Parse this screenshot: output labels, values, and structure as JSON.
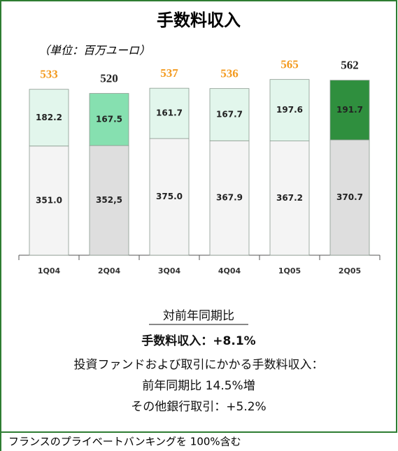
{
  "chart_data": {
    "type": "stacked_bar",
    "title": "手数料収入",
    "subtitle": "（単位：百万ユーロ）",
    "categories": [
      "1Q04",
      "2Q04",
      "3Q04",
      "4Q04",
      "1Q05",
      "2Q05"
    ],
    "series": [
      {
        "values": [
          351.0,
          352.5,
          375.0,
          367.9,
          367.2,
          370.7
        ],
        "value_labels": [
          "351.0",
          "352,5",
          "375.0",
          "367.9",
          "367.2",
          "370.7"
        ],
        "colors": [
          "#f4f4f4",
          "#dedede",
          "#f4f4f4",
          "#f4f4f4",
          "#f4f4f4",
          "#dedede"
        ]
      },
      {
        "values": [
          182.2,
          167.5,
          161.7,
          167.7,
          197.6,
          191.7
        ],
        "value_labels": [
          "182.2",
          "167.5",
          "161.7",
          "167.7",
          "197.6",
          "191.7"
        ],
        "colors": [
          "#e2f6ec",
          "#86e0b0",
          "#e2f6ec",
          "#e2f6ec",
          "#e2f6ec",
          "#2f8f3e"
        ]
      }
    ],
    "totals": [
      533,
      520,
      537,
      536,
      565,
      562
    ],
    "total_colors": [
      "#f39a1e",
      "#222222",
      "#f39a1e",
      "#f39a1e",
      "#f39a1e",
      "#222222"
    ],
    "ylim": [
      0,
      600
    ],
    "notes": {
      "heading": "対前年同期比",
      "main": "手数料収入：+8.1%",
      "line1": "投資ファンドおよび取引にかかる手数料収入：",
      "line2": "前年同期比 14.5%増",
      "line3": "その他銀行取引：+5.2%"
    },
    "footnote": "フランスのプライベートバンキングを 100%含む"
  }
}
